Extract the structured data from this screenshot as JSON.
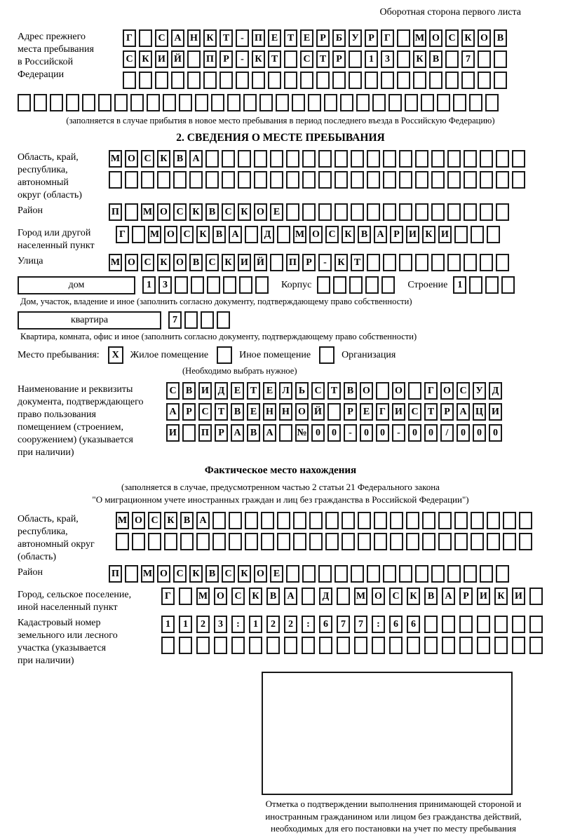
{
  "page": {
    "header_note": "Оборотная сторона первого листа"
  },
  "prev_address": {
    "label": "Адрес прежнего\nместа пребывания\nв Российской\nФедерации",
    "rows": [
      {
        "cells": "Г САНКТ-ПЕТЕРБУРГ МОСКОВ",
        "len": 24
      },
      {
        "cells": "СКИЙ ПР-КТ СТР 13 КВ 7",
        "len": 24
      },
      {
        "cells": "",
        "len": 24
      }
    ],
    "overflow_row": {
      "cells": "",
      "len": 30
    },
    "caption": "(заполняется в случае прибытия в новое место пребывания в период последнего въезда в Российскую Федерацию)"
  },
  "section2": {
    "title": "2. СВЕДЕНИЯ О МЕСТЕ ПРЕБЫВАНИЯ",
    "region": {
      "label": "Область, край,\nреспублика,\nавтономный\nокруг (область)",
      "rows": [
        {
          "cells": "МОСКВА",
          "len": 26
        },
        {
          "cells": "",
          "len": 26
        }
      ]
    },
    "district": {
      "label": "Район",
      "row": {
        "cells": "П МОСКВСКОЕ",
        "len": 25
      }
    },
    "city": {
      "label": "Город или другой\nнаселенный пункт",
      "row": {
        "cells": "Г МОСКВА Д МОСКВАРИКИ",
        "len": 24
      }
    },
    "street": {
      "label": "Улица",
      "row": {
        "cells": "МОСКОВСКИЙ ПР-КТ",
        "len": 25
      }
    },
    "house": {
      "box_label": "дом",
      "cells": {
        "cells": "13",
        "len": 8
      },
      "korpus_label": "Корпус",
      "korpus_cells": {
        "cells": "",
        "len": 5
      },
      "stroenie_label": "Строение",
      "stroenie_cells": {
        "cells": "1",
        "len": 4
      },
      "caption": "Дом, участок, владение и иное (заполнить согласно документу, подтверждающему право собственности)"
    },
    "apartment": {
      "box_label": "квартира",
      "cells": {
        "cells": "7",
        "len": 4
      },
      "caption": "Квартира, комната, офис и иное (заполнить согласно документу, подтверждающему право собственности)"
    },
    "stay_type": {
      "label": "Место пребывания:",
      "options": [
        {
          "label": "Жилое помещение",
          "checked": "X"
        },
        {
          "label": "Иное помещение",
          "checked": ""
        },
        {
          "label": "Организация",
          "checked": ""
        }
      ],
      "caption": "(Необходимо выбрать нужное)"
    },
    "document": {
      "label": "Наименование и реквизиты\nдокумента, подтверждающего\nправо пользования\nпомещением (строением,\nсооружением) (указывается\nпри наличии)",
      "rows": [
        {
          "cells": "СВИДЕТЕЛЬСТВО О ГОСУД",
          "len": 21
        },
        {
          "cells": "АРСТВЕННОЙ РЕГИСТРАЦИ",
          "len": 21
        },
        {
          "cells": "И ПРАВА №00-00-00/000",
          "len": 21
        }
      ]
    }
  },
  "actual_location": {
    "title": "Фактическое место нахождения",
    "caption_line1": "(заполняется в случае, предусмотренном частью 2 статьи 21 Федерального закона",
    "caption_line2": "\"О миграционном учете иностранных граждан и лиц без гражданства в Российской Федерации\")",
    "region": {
      "label": "Область, край,\nреспублика,\nавтономный округ\n(область)",
      "rows": [
        {
          "cells": "МОСКВА",
          "len": 26
        },
        {
          "cells": "",
          "len": 26
        }
      ]
    },
    "district": {
      "label": "Район",
      "row": {
        "cells": "П МОСКВСКОЕ",
        "len": 25
      }
    },
    "city": {
      "label": "Город, сельское поселение,\nиной населенный пункт",
      "row": {
        "cells": "Г МОСКВА Д МОСКВАРИКИ",
        "len": 22
      }
    },
    "cadastral": {
      "label": "Кадастровый номер\nземельного или лесного\nучастка (указывается\nпри наличии)",
      "rows": [
        {
          "cells": "1123:122:677:66",
          "len": 22
        },
        {
          "cells": "",
          "len": 22
        }
      ]
    },
    "stamp_caption": "Отметка о подтверждении выполнения принимающей стороной и иностранным гражданином или лицом без гражданства действий, необходимых для его постановки на учет по месту пребывания"
  }
}
